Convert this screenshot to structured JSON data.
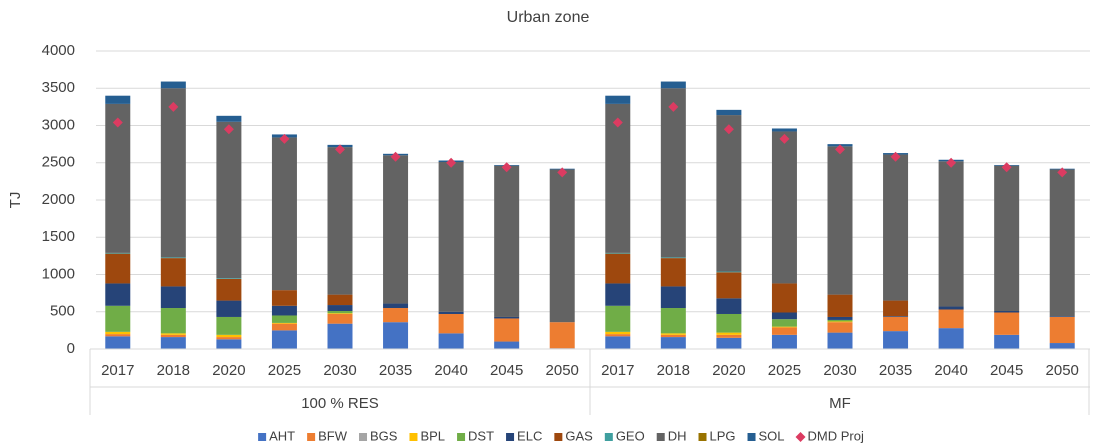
{
  "chart_data": {
    "type": "bar",
    "stacked": true,
    "title": "Urban zone",
    "y_label": "TJ",
    "groups": [
      {
        "label": "100 % RES",
        "categories": [
          "2017",
          "2018",
          "2020",
          "2025",
          "2030",
          "2035",
          "2040",
          "2045",
          "2050"
        ]
      },
      {
        "label": "MF",
        "categories": [
          "2017",
          "2018",
          "2020",
          "2025",
          "2030",
          "2035",
          "2040",
          "2045",
          "2050"
        ]
      }
    ],
    "ylim": [
      0,
      4000
    ],
    "yticks": [
      0,
      500,
      1000,
      1500,
      2000,
      2500,
      3000,
      3500,
      4000
    ],
    "grid": true,
    "legend": "bottom",
    "series": [
      {
        "name": "AHT",
        "color": "#4472c4",
        "values": [
          170,
          160,
          130,
          250,
          340,
          360,
          210,
          100,
          10,
          170,
          160,
          150,
          190,
          220,
          240,
          280,
          190,
          80
        ]
      },
      {
        "name": "BFW",
        "color": "#ed7d31",
        "values": [
          30,
          30,
          30,
          90,
          130,
          190,
          260,
          310,
          350,
          30,
          30,
          40,
          100,
          140,
          190,
          250,
          300,
          350
        ]
      },
      {
        "name": "BGS",
        "color": "#a5a5a5",
        "values": [
          0,
          0,
          0,
          0,
          0,
          0,
          0,
          0,
          0,
          0,
          0,
          0,
          0,
          0,
          0,
          0,
          0,
          0
        ]
      },
      {
        "name": "BPL",
        "color": "#ffc000",
        "values": [
          30,
          20,
          30,
          10,
          10,
          0,
          0,
          0,
          0,
          30,
          20,
          30,
          10,
          10,
          0,
          0,
          0,
          0
        ]
      },
      {
        "name": "DST",
        "color": "#70ad47",
        "values": [
          350,
          340,
          240,
          100,
          30,
          0,
          0,
          0,
          0,
          350,
          340,
          250,
          100,
          20,
          0,
          0,
          0,
          0
        ]
      },
      {
        "name": "ELC",
        "color": "#264478",
        "values": [
          300,
          290,
          220,
          130,
          80,
          60,
          30,
          20,
          0,
          300,
          290,
          210,
          90,
          40,
          10,
          40,
          20,
          10
        ]
      },
      {
        "name": "GAS",
        "color": "#9e480e",
        "values": [
          400,
          380,
          290,
          210,
          140,
          0,
          0,
          0,
          0,
          400,
          380,
          350,
          390,
          300,
          210,
          0,
          0,
          0
        ]
      },
      {
        "name": "GEO",
        "color": "#3f9f9f",
        "values": [
          10,
          10,
          10,
          0,
          0,
          0,
          0,
          0,
          0,
          10,
          10,
          10,
          0,
          0,
          0,
          0,
          0,
          0
        ]
      },
      {
        "name": "DH",
        "color": "#636363",
        "values": [
          2000,
          2270,
          2100,
          2050,
          1980,
          1990,
          2010,
          2030,
          2050,
          2000,
          2270,
          2100,
          2040,
          1990,
          1960,
          1950,
          1950,
          1970
        ]
      },
      {
        "name": "LPG",
        "color": "#997300",
        "values": [
          0,
          0,
          0,
          0,
          0,
          0,
          0,
          0,
          0,
          0,
          0,
          0,
          0,
          0,
          0,
          0,
          0,
          0
        ]
      },
      {
        "name": "SOL",
        "color": "#255e91",
        "values": [
          110,
          90,
          80,
          40,
          30,
          20,
          20,
          10,
          10,
          110,
          90,
          70,
          40,
          30,
          20,
          20,
          10,
          10
        ]
      }
    ],
    "markers": {
      "name": "DMD Proj",
      "color": "#dc3b61",
      "values": [
        3040,
        3250,
        2950,
        2820,
        2680,
        2580,
        2500,
        2440,
        2370,
        3040,
        3250,
        2950,
        2820,
        2680,
        2580,
        2500,
        2440,
        2370
      ]
    }
  }
}
